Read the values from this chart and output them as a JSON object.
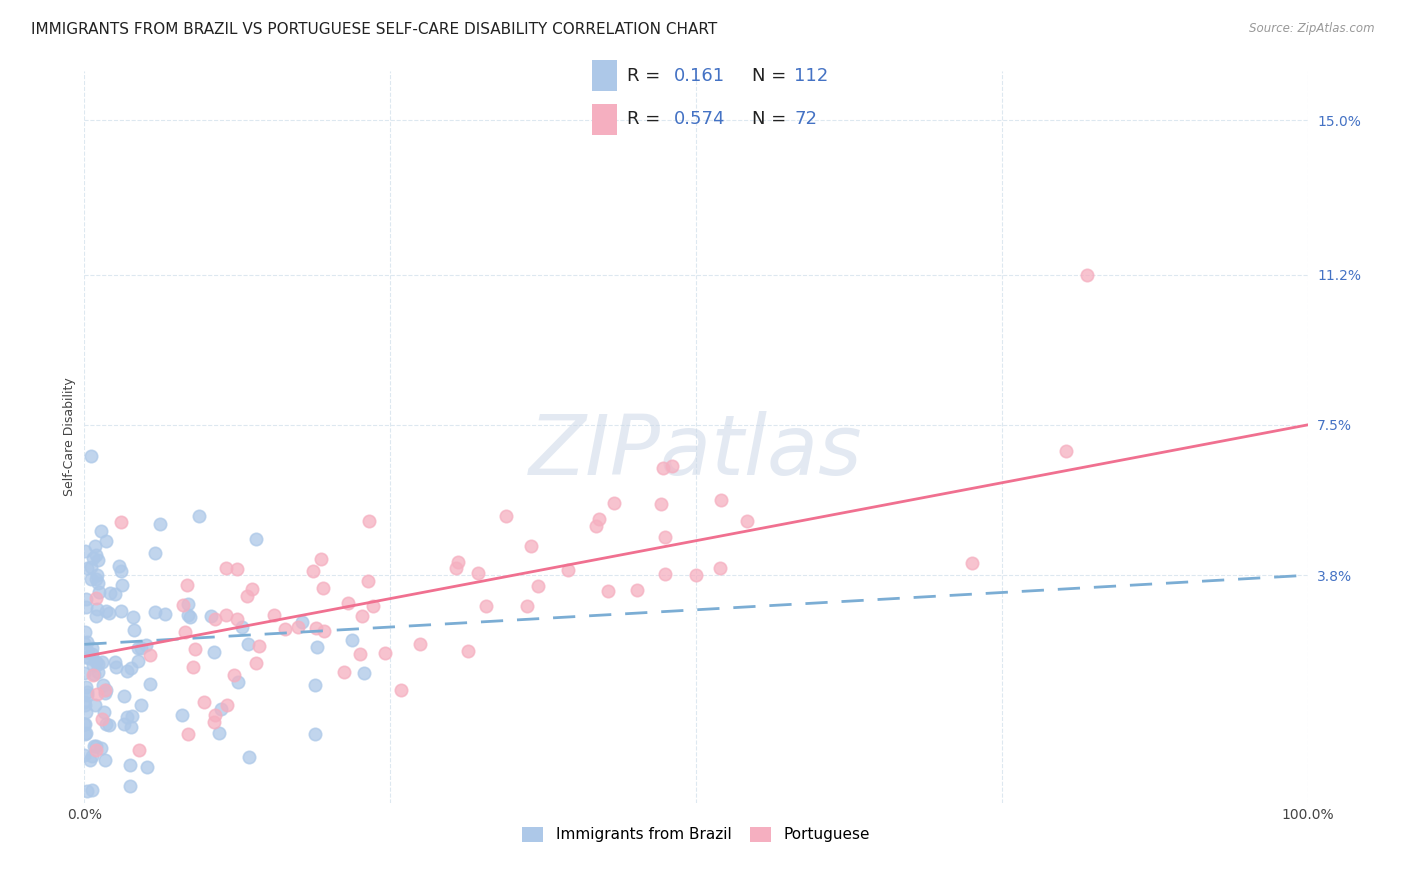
{
  "title": "IMMIGRANTS FROM BRAZIL VS PORTUGUESE SELF-CARE DISABILITY CORRELATION CHART",
  "source": "Source: ZipAtlas.com",
  "ylabel": "Self-Care Disability",
  "xlim": [
    0,
    1.0
  ],
  "ylim": [
    -0.018,
    0.162
  ],
  "ytick_positions": [
    0.038,
    0.075,
    0.112,
    0.15
  ],
  "ytick_labels": [
    "3.8%",
    "7.5%",
    "11.2%",
    "15.0%"
  ],
  "brazil_R": 0.161,
  "brazil_N": 112,
  "portuguese_R": 0.574,
  "portuguese_N": 72,
  "brazil_color": "#adc8e8",
  "portuguese_color": "#f5afc0",
  "brazil_line_color": "#7badd4",
  "portuguese_line_color": "#f07090",
  "background_color": "#ffffff",
  "grid_color": "#dde8f0",
  "watermark": "ZIPatlas",
  "watermark_color": "#ccd8e8",
  "title_fontsize": 11,
  "axis_label_fontsize": 9,
  "tick_fontsize": 9,
  "number_color": "#4472c4",
  "label_color": "#333333",
  "brazil_seed": 42,
  "portuguese_seed": 7
}
